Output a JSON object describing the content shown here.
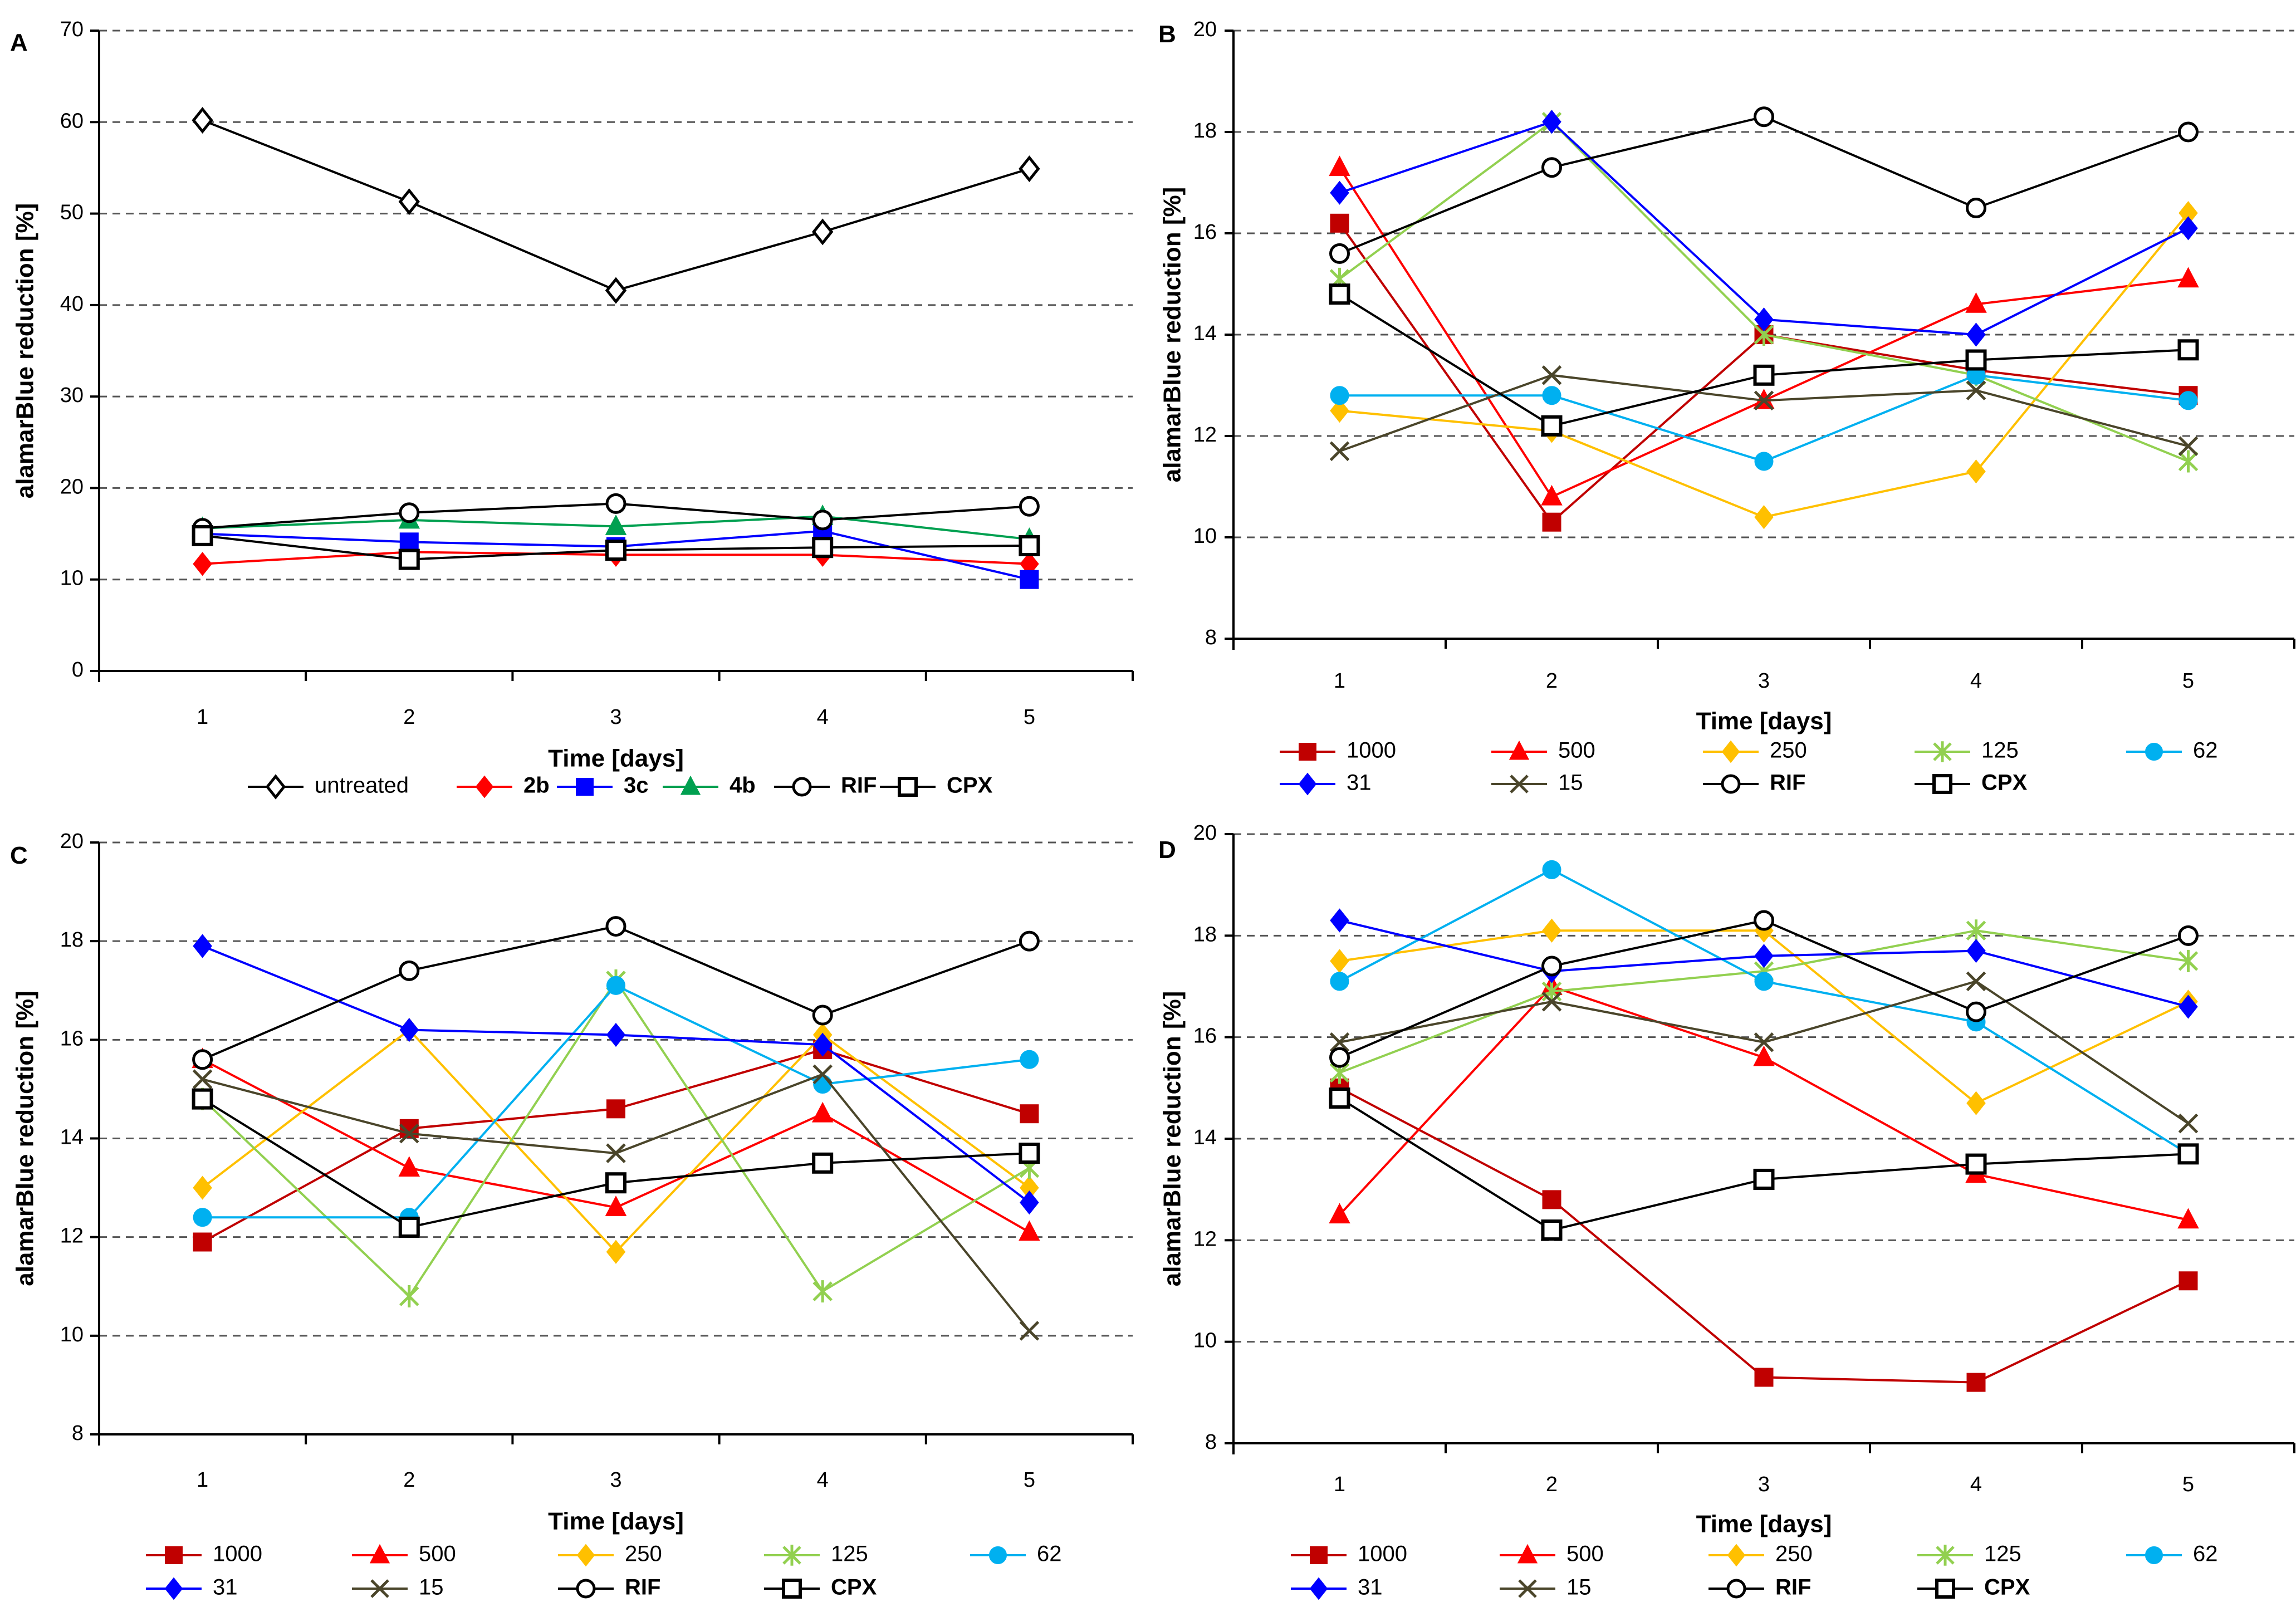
{
  "chart_data": [
    {
      "panel": "A",
      "type": "line",
      "categories": [
        1,
        2,
        3,
        4,
        5
      ],
      "xlabel": "Time [days]",
      "ylabel": "alamarBlue reduction [%]",
      "ylim": [
        0,
        70
      ],
      "yticks": [
        0,
        10,
        20,
        30,
        40,
        50,
        60,
        70
      ],
      "grid": "horizontal dashed",
      "legend_position": "bottom",
      "series": [
        {
          "name": "untreated",
          "bold": false,
          "color": "#000000",
          "marker": "diamond-open",
          "values": [
            60.2,
            51.3,
            41.6,
            48.0,
            54.9
          ]
        },
        {
          "name": "2b",
          "bold": true,
          "color": "#FF0000",
          "marker": "diamond",
          "values": [
            11.7,
            13.0,
            12.7,
            12.7,
            11.7
          ]
        },
        {
          "name": "3c",
          "bold": true,
          "color": "#0000FF",
          "marker": "square",
          "values": [
            15.0,
            14.1,
            13.6,
            15.3,
            10.0
          ]
        },
        {
          "name": "4b",
          "bold": true,
          "color": "#00A050",
          "marker": "triangle",
          "values": [
            15.6,
            16.5,
            15.8,
            16.9,
            14.4
          ]
        },
        {
          "name": "RIF",
          "bold": true,
          "color": "#000000",
          "marker": "circle-open",
          "values": [
            15.6,
            17.3,
            18.3,
            16.5,
            18.0
          ]
        },
        {
          "name": "CPX",
          "bold": true,
          "color": "#000000",
          "marker": "square-open",
          "values": [
            14.8,
            12.2,
            13.2,
            13.5,
            13.7
          ]
        }
      ]
    },
    {
      "panel": "B",
      "type": "line",
      "categories": [
        1,
        2,
        3,
        4,
        5
      ],
      "xlabel": "Time [days]",
      "ylabel": "alamarBlue reduction [%]",
      "ylim": [
        8,
        20
      ],
      "yticks": [
        8,
        10,
        12,
        14,
        16,
        18,
        20
      ],
      "grid": "horizontal dashed",
      "legend_position": "bottom",
      "series": [
        {
          "name": "1000",
          "bold": false,
          "color": "#C00000",
          "marker": "square",
          "values": [
            16.2,
            10.3,
            14.0,
            13.3,
            12.8
          ]
        },
        {
          "name": "500",
          "bold": false,
          "color": "#FF0000",
          "marker": "triangle",
          "values": [
            17.3,
            10.8,
            12.7,
            14.6,
            15.1
          ]
        },
        {
          "name": "250",
          "bold": false,
          "color": "#FFC000",
          "marker": "diamond",
          "values": [
            12.5,
            12.1,
            10.4,
            11.3,
            16.4
          ]
        },
        {
          "name": "125",
          "bold": false,
          "color": "#92D050",
          "marker": "star",
          "values": [
            15.1,
            18.2,
            14.0,
            13.2,
            11.5
          ]
        },
        {
          "name": "62",
          "bold": false,
          "color": "#00B0F0",
          "marker": "circle",
          "values": [
            12.8,
            12.8,
            11.5,
            13.2,
            12.7
          ]
        },
        {
          "name": "31",
          "bold": false,
          "color": "#0000FF",
          "marker": "diamond",
          "values": [
            16.8,
            18.2,
            14.3,
            14.0,
            16.1
          ]
        },
        {
          "name": "15",
          "bold": false,
          "color": "#4A452A",
          "marker": "x",
          "values": [
            11.7,
            13.2,
            12.7,
            12.9,
            11.8
          ]
        },
        {
          "name": "RIF",
          "bold": true,
          "color": "#000000",
          "marker": "circle-open",
          "values": [
            15.6,
            17.3,
            18.3,
            16.5,
            18.0
          ]
        },
        {
          "name": "CPX",
          "bold": true,
          "color": "#000000",
          "marker": "square-open",
          "values": [
            14.8,
            12.2,
            13.2,
            13.5,
            13.7
          ]
        }
      ]
    },
    {
      "panel": "C",
      "type": "line",
      "categories": [
        1,
        2,
        3,
        4,
        5
      ],
      "xlabel": "Time [days]",
      "ylabel": "alamarBlue reduction [%]",
      "ylim": [
        8,
        20
      ],
      "yticks": [
        8,
        10,
        12,
        14,
        16,
        18,
        20
      ],
      "grid": "horizontal dashed",
      "legend_position": "bottom",
      "series": [
        {
          "name": "1000",
          "bold": false,
          "color": "#C00000",
          "marker": "square",
          "values": [
            11.9,
            14.2,
            14.6,
            15.8,
            14.5
          ]
        },
        {
          "name": "500",
          "bold": false,
          "color": "#FF0000",
          "marker": "triangle",
          "values": [
            15.6,
            13.4,
            12.6,
            14.5,
            12.1
          ]
        },
        {
          "name": "250",
          "bold": false,
          "color": "#FFC000",
          "marker": "diamond",
          "values": [
            13.0,
            16.2,
            11.7,
            16.1,
            13.0
          ]
        },
        {
          "name": "125",
          "bold": false,
          "color": "#92D050",
          "marker": "star",
          "values": [
            14.8,
            10.8,
            17.2,
            10.9,
            13.4
          ]
        },
        {
          "name": "62",
          "bold": false,
          "color": "#00B0F0",
          "marker": "circle",
          "values": [
            12.4,
            12.4,
            17.1,
            15.1,
            15.6
          ]
        },
        {
          "name": "31",
          "bold": false,
          "color": "#0000FF",
          "marker": "diamond",
          "values": [
            17.9,
            16.2,
            16.1,
            15.9,
            12.7
          ]
        },
        {
          "name": "15",
          "bold": false,
          "color": "#4A452A",
          "marker": "x",
          "values": [
            15.2,
            14.1,
            13.7,
            15.3,
            10.1
          ]
        },
        {
          "name": "RIF",
          "bold": true,
          "color": "#000000",
          "marker": "circle-open",
          "values": [
            15.6,
            17.4,
            18.3,
            16.5,
            18.0
          ]
        },
        {
          "name": "CPX",
          "bold": true,
          "color": "#000000",
          "marker": "square-open",
          "values": [
            14.8,
            12.2,
            13.1,
            13.5,
            13.7
          ]
        }
      ]
    },
    {
      "panel": "D",
      "type": "line",
      "categories": [
        1,
        2,
        3,
        4,
        5
      ],
      "xlabel": "Time [days]",
      "ylabel": "alamarBlue reduction [%]",
      "ylim": [
        8,
        20
      ],
      "yticks": [
        8,
        10,
        12,
        14,
        16,
        18,
        20
      ],
      "grid": "horizontal dashed",
      "legend_position": "bottom",
      "series": [
        {
          "name": "1000",
          "bold": false,
          "color": "#C00000",
          "marker": "square",
          "values": [
            15.0,
            12.8,
            9.3,
            9.2,
            11.2
          ]
        },
        {
          "name": "500",
          "bold": false,
          "color": "#FF0000",
          "marker": "triangle",
          "values": [
            12.5,
            17.0,
            15.6,
            13.3,
            12.4
          ]
        },
        {
          "name": "250",
          "bold": false,
          "color": "#FFC000",
          "marker": "diamond",
          "values": [
            17.5,
            18.1,
            18.1,
            14.7,
            16.7
          ]
        },
        {
          "name": "125",
          "bold": false,
          "color": "#92D050",
          "marker": "star",
          "values": [
            15.3,
            16.9,
            17.3,
            18.1,
            17.5
          ]
        },
        {
          "name": "62",
          "bold": false,
          "color": "#00B0F0",
          "marker": "circle",
          "values": [
            17.1,
            19.3,
            17.1,
            16.3,
            13.7
          ]
        },
        {
          "name": "31",
          "bold": false,
          "color": "#0000FF",
          "marker": "diamond",
          "values": [
            18.3,
            17.3,
            17.6,
            17.7,
            16.6
          ]
        },
        {
          "name": "15",
          "bold": false,
          "color": "#4A452A",
          "marker": "x",
          "values": [
            15.9,
            16.7,
            15.9,
            17.1,
            14.3
          ]
        },
        {
          "name": "RIF",
          "bold": true,
          "color": "#000000",
          "marker": "circle-open",
          "values": [
            15.6,
            17.4,
            18.3,
            16.5,
            18.0
          ]
        },
        {
          "name": "CPX",
          "bold": true,
          "color": "#000000",
          "marker": "square-open",
          "values": [
            14.8,
            12.2,
            13.2,
            13.5,
            13.7
          ]
        }
      ]
    }
  ]
}
